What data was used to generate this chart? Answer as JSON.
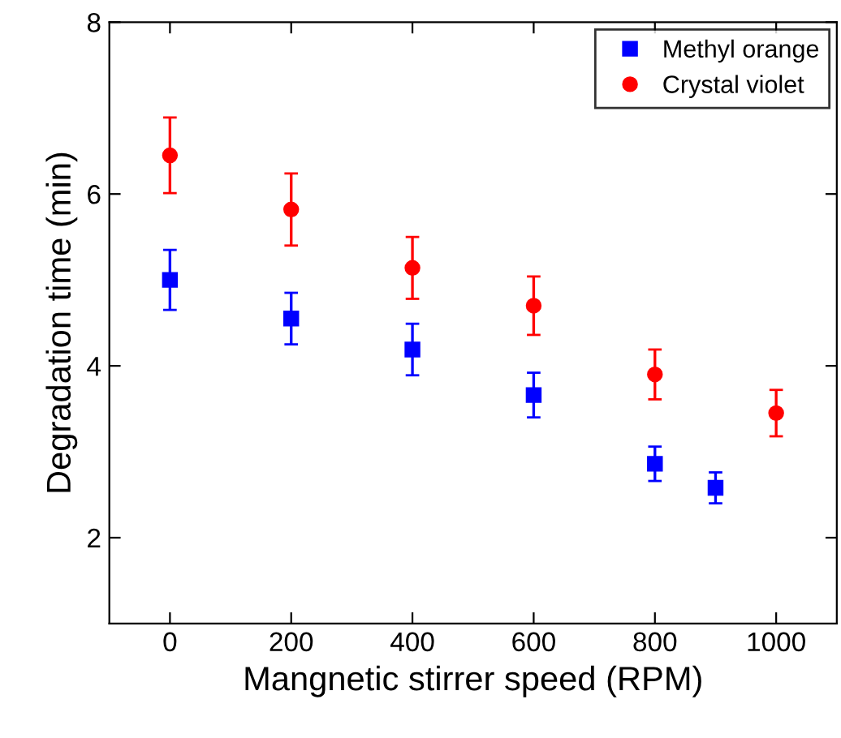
{
  "chart_data": {
    "type": "scatter",
    "xlabel": "Mangnetic stirrer speed (RPM)",
    "ylabel": "Degradation time (min)",
    "xlim": [
      -100,
      1100
    ],
    "xticks": [
      0,
      200,
      400,
      600,
      800,
      1000
    ],
    "ylim": [
      1,
      8
    ],
    "yticks": [
      2,
      4,
      6,
      8
    ],
    "legend": "top right",
    "grid": false,
    "series": [
      {
        "name": "Methyl orange",
        "color": "#0000ff",
        "marker": "square",
        "x": [
          0,
          200,
          400,
          600,
          800,
          900
        ],
        "values": [
          5.0,
          4.55,
          4.19,
          3.66,
          2.86,
          2.58
        ],
        "errors": [
          0.35,
          0.3,
          0.3,
          0.26,
          0.2,
          0.18
        ]
      },
      {
        "name": "Crystal violet",
        "color": "#ff0000",
        "marker": "circle",
        "x": [
          0,
          200,
          400,
          600,
          800,
          1000
        ],
        "values": [
          6.45,
          5.82,
          5.14,
          4.7,
          3.9,
          3.45
        ],
        "errors": [
          0.44,
          0.42,
          0.36,
          0.34,
          0.29,
          0.27
        ]
      }
    ]
  }
}
